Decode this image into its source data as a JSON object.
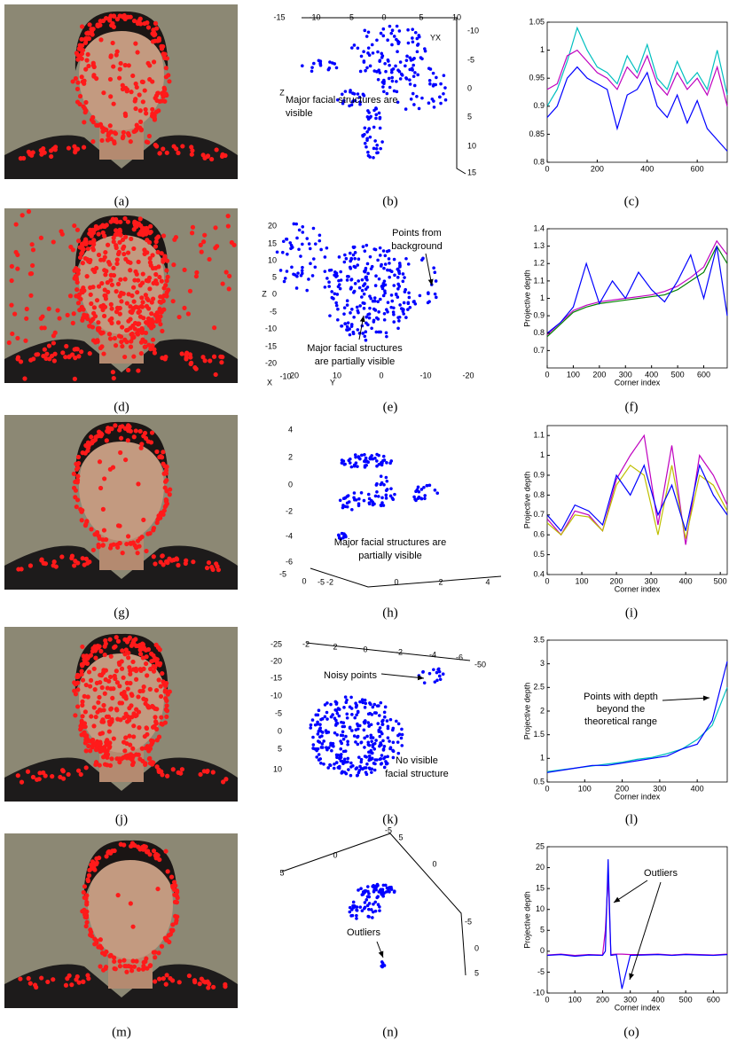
{
  "panel_labels": [
    "(a)",
    "(b)",
    "(c)",
    "(d)",
    "(e)",
    "(f)",
    "(g)",
    "(h)",
    "(i)",
    "(j)",
    "(k)",
    "(l)",
    "(m)",
    "(n)",
    "(o)"
  ],
  "scatter3d": [
    {
      "ticks": [
        "-15",
        "-10",
        "-5",
        "0",
        "5",
        "10",
        "-10",
        "-5",
        "0",
        "5",
        "10",
        "15"
      ],
      "axis_labels": [
        "YX",
        "Z"
      ],
      "annotations": [
        [
          "Major facial structures are",
          "visible"
        ]
      ]
    },
    {
      "ticks": [
        "20",
        "15",
        "10",
        "5",
        "0",
        "-5",
        "-10",
        "-15",
        "-20",
        "-10",
        "20",
        "10",
        "0",
        "-10",
        "-20"
      ],
      "axis_labels": [
        "Z",
        "X",
        "Y"
      ],
      "annotations": [
        [
          "Points from",
          "background"
        ],
        [
          "Major facial structures",
          "are partially visible"
        ]
      ]
    },
    {
      "ticks": [
        "4",
        "2",
        "0",
        "-2",
        "-4",
        "-6",
        "-5",
        "0",
        "-5",
        "-2",
        "0",
        "2",
        "4"
      ],
      "axis_labels": [],
      "annotations": [
        [
          "Major facial structures are",
          "partially visible"
        ]
      ]
    },
    {
      "ticks": [
        "-2",
        "2",
        "0",
        "-2",
        "-4",
        "-6",
        "-50",
        "-25",
        "-20",
        "-15",
        "-10",
        "-5",
        "0",
        "5",
        "10"
      ],
      "axis_labels": [],
      "annotations": [
        [
          "Noisy points"
        ],
        [
          "No visible",
          "facial structure"
        ]
      ]
    },
    {
      "ticks": [
        "5",
        "0",
        "-5",
        "5",
        "0",
        "-5",
        "0",
        "5"
      ],
      "axis_labels": [],
      "annotations": [
        [
          "Outliers"
        ]
      ]
    }
  ],
  "chart_data": [
    {
      "type": "line",
      "x": [
        0,
        40,
        80,
        120,
        160,
        200,
        240,
        280,
        320,
        360,
        400,
        440,
        480,
        520,
        560,
        600,
        640,
        680,
        720
      ],
      "xlim": [
        0,
        720
      ],
      "xticks": [
        0,
        200,
        400,
        600
      ],
      "ylim": [
        0.8,
        1.05
      ],
      "yticks": [
        0.8,
        0.85,
        0.9,
        0.95,
        1,
        1.05
      ],
      "series": [
        {
          "color": "#00bfbf",
          "values": [
            0.9,
            0.93,
            0.98,
            1.04,
            1.0,
            0.97,
            0.96,
            0.94,
            0.99,
            0.96,
            1.01,
            0.95,
            0.93,
            0.98,
            0.94,
            0.96,
            0.93,
            1.0,
            0.92
          ]
        },
        {
          "color": "#bf00bf",
          "values": [
            0.93,
            0.94,
            0.99,
            1.0,
            0.98,
            0.96,
            0.95,
            0.93,
            0.97,
            0.95,
            0.99,
            0.94,
            0.92,
            0.96,
            0.93,
            0.95,
            0.92,
            0.97,
            0.9
          ]
        },
        {
          "color": "#0000ff",
          "values": [
            0.88,
            0.9,
            0.95,
            0.97,
            0.95,
            0.94,
            0.93,
            0.86,
            0.92,
            0.93,
            0.96,
            0.9,
            0.88,
            0.92,
            0.87,
            0.91,
            0.86,
            0.84,
            0.82
          ]
        }
      ]
    },
    {
      "type": "line",
      "ylabel": "Projective depth",
      "xlabel": "Corner index",
      "x": [
        0,
        50,
        100,
        150,
        200,
        250,
        300,
        350,
        400,
        450,
        500,
        550,
        600,
        650,
        690
      ],
      "xlim": [
        0,
        690
      ],
      "xticks": [
        0,
        100,
        200,
        300,
        400,
        500,
        600
      ],
      "ylim": [
        0.6,
        1.4
      ],
      "yticks": [
        0.7,
        0.8,
        0.9,
        1,
        1.1,
        1.2,
        1.3,
        1.4
      ],
      "series": [
        {
          "color": "#bf00bf",
          "values": [
            0.79,
            0.86,
            0.93,
            0.96,
            0.98,
            0.99,
            1.0,
            1.01,
            1.02,
            1.04,
            1.07,
            1.12,
            1.18,
            1.33,
            1.25
          ]
        },
        {
          "color": "#008000",
          "values": [
            0.78,
            0.85,
            0.92,
            0.95,
            0.97,
            0.98,
            0.99,
            1.0,
            1.01,
            1.02,
            1.05,
            1.1,
            1.15,
            1.3,
            1.2
          ]
        },
        {
          "color": "#0000ff",
          "values": [
            0.8,
            0.86,
            0.95,
            1.2,
            0.97,
            1.1,
            1.0,
            1.15,
            1.05,
            0.98,
            1.1,
            1.25,
            1.0,
            1.3,
            0.9
          ]
        }
      ]
    },
    {
      "type": "line",
      "ylabel": "Projective depth",
      "xlabel": "Corner index",
      "x": [
        0,
        40,
        80,
        120,
        160,
        200,
        240,
        280,
        320,
        360,
        400,
        440,
        480,
        520
      ],
      "xlim": [
        0,
        520
      ],
      "xticks": [
        0,
        100,
        200,
        300,
        400,
        500
      ],
      "ylim": [
        0.4,
        1.15
      ],
      "yticks": [
        0.4,
        0.5,
        0.6,
        0.7,
        0.8,
        0.9,
        1,
        1.1
      ],
      "series": [
        {
          "color": "#bf00bf",
          "values": [
            0.68,
            0.6,
            0.72,
            0.7,
            0.62,
            0.88,
            1.0,
            1.1,
            0.65,
            1.05,
            0.55,
            1.0,
            0.9,
            0.75
          ]
        },
        {
          "color": "#bfbf00",
          "values": [
            0.66,
            0.6,
            0.7,
            0.69,
            0.62,
            0.85,
            0.95,
            0.9,
            0.6,
            0.95,
            0.58,
            0.9,
            0.85,
            0.72
          ]
        },
        {
          "color": "#0000ff",
          "values": [
            0.7,
            0.62,
            0.75,
            0.72,
            0.65,
            0.9,
            0.8,
            0.95,
            0.7,
            0.85,
            0.62,
            0.95,
            0.8,
            0.7
          ]
        }
      ]
    },
    {
      "type": "line",
      "ylabel": "Projective depth",
      "xlabel": "Corner index",
      "annotation": [
        "Points with depth",
        "beyond the",
        "theoretical range"
      ],
      "x": [
        0,
        40,
        80,
        120,
        160,
        200,
        240,
        280,
        320,
        360,
        400,
        440,
        480
      ],
      "xlim": [
        0,
        480
      ],
      "xticks": [
        0,
        100,
        200,
        300,
        400
      ],
      "ylim": [
        0.5,
        3.5
      ],
      "yticks": [
        0.5,
        1,
        1.5,
        2,
        2.5,
        3,
        3.5
      ],
      "series": [
        {
          "color": "#00bfbf",
          "values": [
            0.72,
            0.76,
            0.8,
            0.84,
            0.88,
            0.92,
            0.98,
            1.02,
            1.1,
            1.2,
            1.4,
            1.7,
            2.5
          ]
        },
        {
          "color": "#0000ff",
          "values": [
            0.7,
            0.75,
            0.8,
            0.85,
            0.85,
            0.9,
            0.95,
            1.0,
            1.05,
            1.2,
            1.3,
            1.8,
            3.05
          ]
        }
      ]
    },
    {
      "type": "line",
      "ylabel": "Projective depth",
      "xlabel": "Corner index",
      "annotation": [
        "Outliers"
      ],
      "x": [
        0,
        50,
        100,
        150,
        200,
        210,
        220,
        230,
        250,
        270,
        300,
        350,
        400,
        450,
        500,
        550,
        600,
        650
      ],
      "xlim": [
        0,
        650
      ],
      "xticks": [
        0,
        100,
        200,
        300,
        400,
        500,
        600
      ],
      "ylim": [
        -10,
        25
      ],
      "yticks": [
        -10,
        -5,
        0,
        5,
        10,
        15,
        20,
        25
      ],
      "series": [
        {
          "color": "#bf00bf",
          "values": [
            -0.9,
            -0.7,
            -1,
            -0.8,
            -0.9,
            5,
            18,
            -0.8,
            -0.7,
            -0.7,
            -0.8,
            -0.8,
            -0.7,
            -0.9,
            -0.7,
            -0.8,
            -0.9,
            -0.7
          ]
        },
        {
          "color": "#0000ff",
          "values": [
            -1,
            -0.8,
            -1.2,
            -0.9,
            -1,
            0,
            22,
            -1,
            -0.8,
            -9,
            -1,
            -0.9,
            -0.8,
            -1,
            -0.8,
            -0.9,
            -1,
            -0.8
          ]
        }
      ]
    }
  ]
}
